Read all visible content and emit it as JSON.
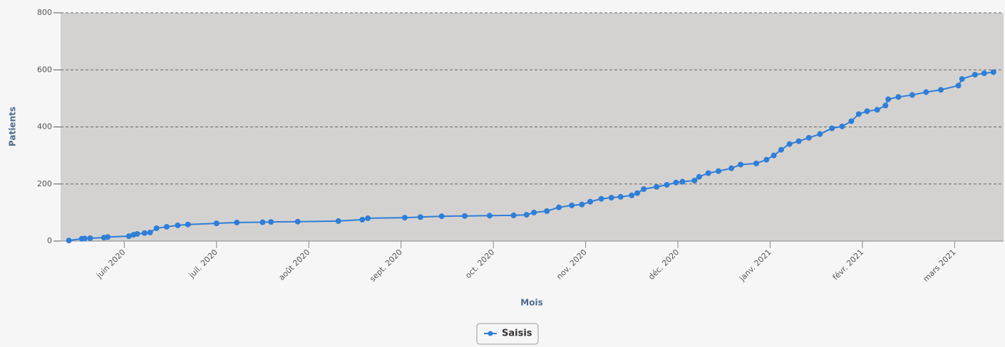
{
  "chart_data": {
    "type": "line",
    "x_label": "Mois",
    "y_label": "Patients",
    "x": [
      0.4,
      0.54,
      0.57,
      0.63,
      0.78,
      0.82,
      1.05,
      1.1,
      1.14,
      1.22,
      1.28,
      1.35,
      1.46,
      1.58,
      1.69,
      2.0,
      2.22,
      2.5,
      2.59,
      2.88,
      3.32,
      3.58,
      3.64,
      4.04,
      4.21,
      4.44,
      4.69,
      4.96,
      5.22,
      5.36,
      5.44,
      5.58,
      5.71,
      5.85,
      5.96,
      6.05,
      6.17,
      6.28,
      6.38,
      6.5,
      6.56,
      6.63,
      6.77,
      6.88,
      6.98,
      7.05,
      7.18,
      7.23,
      7.33,
      7.44,
      7.58,
      7.68,
      7.85,
      7.96,
      8.04,
      8.12,
      8.21,
      8.31,
      8.42,
      8.54,
      8.67,
      8.78,
      8.88,
      8.96,
      9.05,
      9.16,
      9.25,
      9.28,
      9.39,
      9.54,
      9.69,
      9.85,
      10.04,
      10.08,
      10.22,
      10.32,
      10.42
    ],
    "series": [
      {
        "name": "Saisis",
        "color": "#2f7ed8",
        "values": [
          2,
          8,
          9,
          10,
          12,
          14,
          17,
          22,
          25,
          28,
          30,
          45,
          50,
          55,
          58,
          62,
          65,
          66,
          67,
          68,
          70,
          75,
          80,
          82,
          84,
          87,
          88,
          89,
          90,
          92,
          100,
          105,
          118,
          125,
          128,
          138,
          148,
          152,
          155,
          160,
          168,
          182,
          190,
          197,
          205,
          208,
          212,
          225,
          238,
          245,
          255,
          268,
          272,
          285,
          300,
          320,
          340,
          350,
          362,
          375,
          395,
          402,
          420,
          445,
          455,
          460,
          475,
          497,
          505,
          512,
          522,
          530,
          545,
          568,
          583,
          588,
          592
        ]
      }
    ],
    "xlim": [
      0.31,
      10.53
    ],
    "xticks": [
      {
        "value": 1,
        "label": "juin 2020"
      },
      {
        "value": 2,
        "label": "juil. 2020"
      },
      {
        "value": 3,
        "label": "août 2020"
      },
      {
        "value": 4,
        "label": "sept. 2020"
      },
      {
        "value": 5,
        "label": "oct. 2020"
      },
      {
        "value": 6,
        "label": "nov. 2020"
      },
      {
        "value": 7,
        "label": "déc. 2020"
      },
      {
        "value": 8,
        "label": "janv. 2021"
      },
      {
        "value": 9,
        "label": "févr. 2021"
      },
      {
        "value": 10,
        "label": "mars 2021"
      }
    ],
    "ylim": [
      0,
      800
    ],
    "yticks": [
      0,
      200,
      400,
      600,
      800
    ],
    "grid": true,
    "legend": "bottom"
  }
}
